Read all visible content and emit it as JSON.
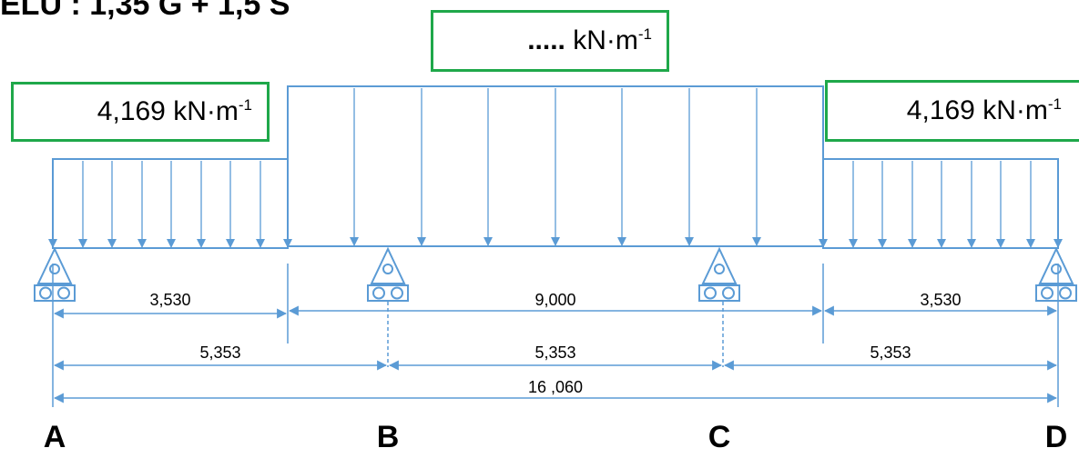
{
  "title": "ELU : 1,35 G + 1,5 S",
  "loads": {
    "left": {
      "value": "4,169",
      "unit": "kN·m",
      "exp": "-1"
    },
    "center": {
      "value": ".....",
      "unit": "kN·m",
      "exp": "-1"
    },
    "right": {
      "value": "4,169",
      "unit": "kN·m",
      "exp": "-1"
    }
  },
  "supports": [
    "A",
    "B",
    "C",
    "D"
  ],
  "dimensions": {
    "row1": [
      "3,530",
      "9,000",
      "3,530"
    ],
    "row2": [
      "5,353",
      "5,353",
      "5,353"
    ],
    "total": "16 ,060"
  },
  "colors": {
    "structure": "#5b9bd5",
    "box_border": "#1fa84a"
  }
}
